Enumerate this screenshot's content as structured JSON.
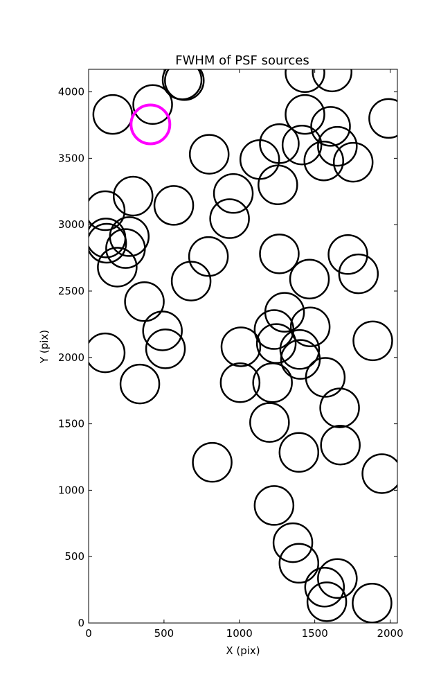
{
  "chart_data": {
    "type": "scatter",
    "title": "FWHM of PSF sources",
    "xlabel": "X (pix)",
    "ylabel": "Y (pix)",
    "xlim": [
      0,
      2048
    ],
    "ylim": [
      0,
      4170
    ],
    "xticks": [
      0,
      500,
      1000,
      1500,
      2000
    ],
    "yticks": [
      0,
      500,
      1000,
      1500,
      2000,
      2500,
      3000,
      3500,
      4000
    ],
    "grid": false,
    "legend": "none",
    "marker": "circle",
    "series": [
      {
        "color": "#000000",
        "points": [
          [
            160,
            3830
          ],
          [
            425,
            3905
          ],
          [
            620,
            4090
          ],
          [
            635,
            4085
          ],
          [
            1435,
            4145
          ],
          [
            1615,
            4150
          ],
          [
            1990,
            3800
          ],
          [
            800,
            3530
          ],
          [
            1135,
            3490
          ],
          [
            1265,
            3610
          ],
          [
            1415,
            3600
          ],
          [
            1435,
            3830
          ],
          [
            1605,
            3740
          ],
          [
            1650,
            3590
          ],
          [
            1560,
            3480
          ],
          [
            1755,
            3470
          ],
          [
            1255,
            3300
          ],
          [
            110,
            3105
          ],
          [
            295,
            3215
          ],
          [
            565,
            3145
          ],
          [
            960,
            3235
          ],
          [
            935,
            3045
          ],
          [
            115,
            2900
          ],
          [
            270,
            2910
          ],
          [
            120,
            2860
          ],
          [
            245,
            2820
          ],
          [
            190,
            2680
          ],
          [
            795,
            2760
          ],
          [
            1265,
            2780
          ],
          [
            1720,
            2775
          ],
          [
            1790,
            2630
          ],
          [
            1465,
            2590
          ],
          [
            680,
            2575
          ],
          [
            370,
            2420
          ],
          [
            1300,
            2340
          ],
          [
            1470,
            2230
          ],
          [
            1230,
            2210
          ],
          [
            490,
            2200
          ],
          [
            110,
            2035
          ],
          [
            510,
            2065
          ],
          [
            1010,
            2080
          ],
          [
            1245,
            2105
          ],
          [
            1400,
            2060
          ],
          [
            1405,
            1985
          ],
          [
            1885,
            2125
          ],
          [
            340,
            1800
          ],
          [
            1005,
            1810
          ],
          [
            1220,
            1810
          ],
          [
            1570,
            1850
          ],
          [
            1665,
            1620
          ],
          [
            1200,
            1510
          ],
          [
            1670,
            1340
          ],
          [
            1395,
            1285
          ],
          [
            820,
            1210
          ],
          [
            1945,
            1125
          ],
          [
            1230,
            885
          ],
          [
            1355,
            605
          ],
          [
            1395,
            450
          ],
          [
            1650,
            335
          ],
          [
            1565,
            270
          ],
          [
            1580,
            160
          ],
          [
            1880,
            150
          ]
        ]
      },
      {
        "color": "#ff00ff",
        "points": [
          [
            410,
            3755
          ]
        ]
      }
    ]
  }
}
